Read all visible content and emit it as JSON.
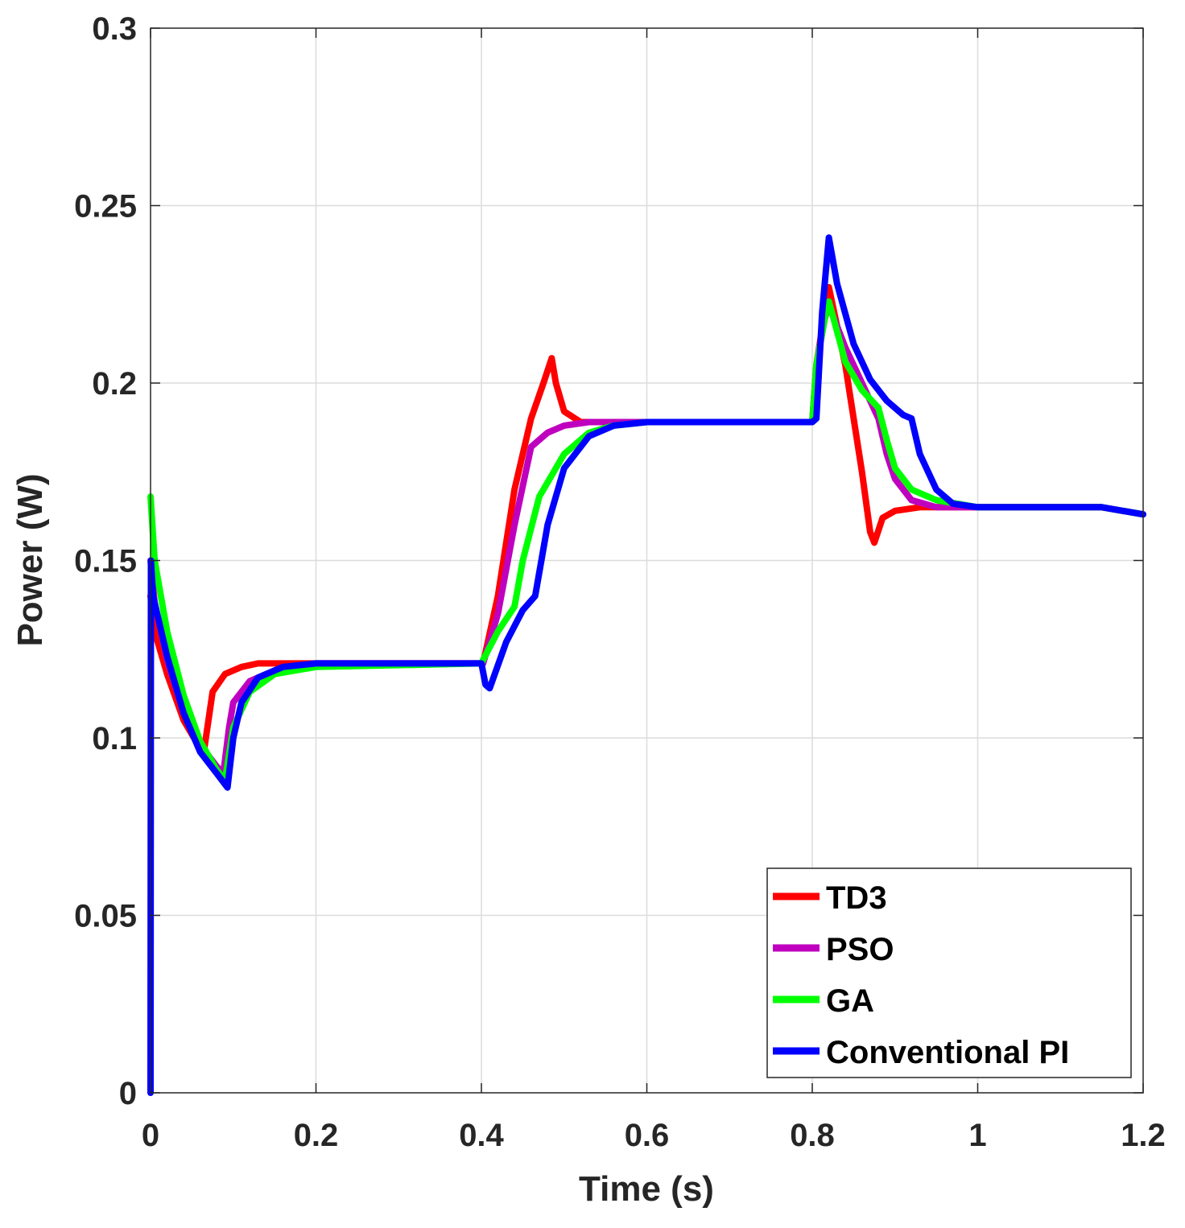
{
  "chart_data": {
    "type": "line",
    "title": "",
    "xlabel": "Time (s)",
    "ylabel": "Power (W)",
    "xlim": [
      0,
      1.2
    ],
    "ylim": [
      0,
      0.3
    ],
    "xticks": [
      0,
      0.2,
      0.4,
      0.6,
      0.8,
      1,
      1.2
    ],
    "yticks": [
      0,
      0.05,
      0.1,
      0.15,
      0.2,
      0.25,
      0.3
    ],
    "xtick_labels": [
      "0",
      "0.2",
      "0.4",
      "0.6",
      "0.8",
      "1",
      "1.2"
    ],
    "ytick_labels": [
      "0",
      "0.05",
      "0.1",
      "0.15",
      "0.2",
      "0.25",
      "0.3"
    ],
    "grid": true,
    "legend_position": "bottom-right",
    "series": [
      {
        "name": "TD3",
        "color": "#ff0000",
        "x": [
          0.0,
          0.005,
          0.02,
          0.04,
          0.06,
          0.065,
          0.075,
          0.09,
          0.11,
          0.13,
          0.2,
          0.4,
          0.402,
          0.42,
          0.44,
          0.46,
          0.475,
          0.485,
          0.49,
          0.5,
          0.52,
          0.6,
          0.8,
          0.805,
          0.815,
          0.82,
          0.84,
          0.86,
          0.87,
          0.875,
          0.885,
          0.9,
          0.93,
          1.0,
          1.1,
          1.15,
          1.2
        ],
        "y": [
          0.14,
          0.13,
          0.118,
          0.105,
          0.097,
          0.097,
          0.113,
          0.118,
          0.12,
          0.121,
          0.121,
          0.121,
          0.121,
          0.14,
          0.17,
          0.19,
          0.2,
          0.207,
          0.2,
          0.192,
          0.189,
          0.189,
          0.189,
          0.205,
          0.22,
          0.227,
          0.205,
          0.175,
          0.158,
          0.155,
          0.162,
          0.164,
          0.165,
          0.165,
          0.165,
          0.165,
          0.163
        ]
      },
      {
        "name": "PSO",
        "color": "#bf00bf",
        "x": [
          0.0,
          0.005,
          0.02,
          0.04,
          0.06,
          0.08,
          0.088,
          0.095,
          0.1,
          0.12,
          0.15,
          0.2,
          0.4,
          0.402,
          0.42,
          0.44,
          0.46,
          0.48,
          0.5,
          0.53,
          0.6,
          0.8,
          0.805,
          0.815,
          0.82,
          0.84,
          0.86,
          0.88,
          0.89,
          0.9,
          0.92,
          0.95,
          1.0,
          1.1,
          1.15,
          1.2
        ],
        "y": [
          0.15,
          0.138,
          0.122,
          0.107,
          0.098,
          0.092,
          0.09,
          0.103,
          0.11,
          0.116,
          0.119,
          0.121,
          0.121,
          0.121,
          0.135,
          0.16,
          0.182,
          0.186,
          0.188,
          0.189,
          0.189,
          0.189,
          0.205,
          0.218,
          0.222,
          0.21,
          0.2,
          0.19,
          0.18,
          0.173,
          0.167,
          0.165,
          0.165,
          0.165,
          0.165,
          0.163
        ]
      },
      {
        "name": "GA",
        "color": "#00ff00",
        "x": [
          0.0,
          0.005,
          0.02,
          0.04,
          0.06,
          0.08,
          0.09,
          0.1,
          0.12,
          0.15,
          0.2,
          0.4,
          0.402,
          0.42,
          0.44,
          0.45,
          0.47,
          0.5,
          0.53,
          0.56,
          0.6,
          0.8,
          0.805,
          0.815,
          0.82,
          0.84,
          0.86,
          0.88,
          0.89,
          0.9,
          0.92,
          0.95,
          1.0,
          1.1,
          1.15,
          1.2
        ],
        "y": [
          0.168,
          0.15,
          0.13,
          0.112,
          0.099,
          0.091,
          0.088,
          0.103,
          0.113,
          0.118,
          0.12,
          0.121,
          0.122,
          0.13,
          0.137,
          0.15,
          0.168,
          0.18,
          0.186,
          0.188,
          0.189,
          0.189,
          0.205,
          0.218,
          0.223,
          0.206,
          0.198,
          0.193,
          0.184,
          0.176,
          0.17,
          0.167,
          0.165,
          0.165,
          0.165,
          0.163
        ]
      },
      {
        "name": "Conventional PI",
        "color": "#0000ff",
        "x": [
          0.0,
          0.0005,
          0.003,
          0.02,
          0.04,
          0.06,
          0.08,
          0.093,
          0.1,
          0.11,
          0.13,
          0.16,
          0.2,
          0.4,
          0.405,
          0.41,
          0.43,
          0.45,
          0.465,
          0.48,
          0.5,
          0.53,
          0.56,
          0.6,
          0.8,
          0.805,
          0.812,
          0.82,
          0.83,
          0.85,
          0.87,
          0.89,
          0.91,
          0.92,
          0.93,
          0.95,
          0.97,
          1.0,
          1.1,
          1.15,
          1.2
        ],
        "y": [
          0.0,
          0.15,
          0.14,
          0.123,
          0.107,
          0.096,
          0.09,
          0.086,
          0.1,
          0.11,
          0.117,
          0.12,
          0.121,
          0.121,
          0.115,
          0.114,
          0.127,
          0.136,
          0.14,
          0.16,
          0.176,
          0.185,
          0.188,
          0.189,
          0.189,
          0.19,
          0.22,
          0.241,
          0.228,
          0.211,
          0.201,
          0.195,
          0.191,
          0.19,
          0.18,
          0.17,
          0.166,
          0.165,
          0.165,
          0.165,
          0.163
        ]
      }
    ]
  }
}
